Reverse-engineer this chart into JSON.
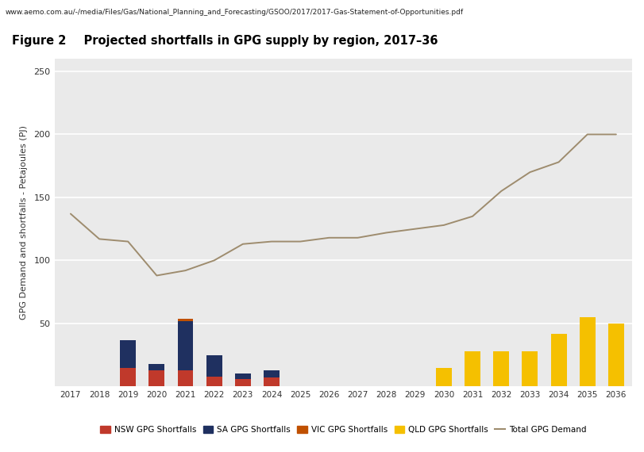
{
  "years": [
    2017,
    2018,
    2019,
    2020,
    2021,
    2022,
    2023,
    2024,
    2025,
    2026,
    2027,
    2028,
    2029,
    2030,
    2031,
    2032,
    2033,
    2034,
    2035,
    2036
  ],
  "nsw_shortfalls": [
    0,
    0,
    15,
    13,
    13,
    8,
    6,
    7,
    0,
    0,
    0,
    0,
    0,
    0,
    0,
    0,
    0,
    0,
    0,
    0
  ],
  "sa_shortfalls": [
    0,
    0,
    22,
    5,
    39,
    17,
    4,
    6,
    0,
    0,
    0,
    0,
    0,
    0,
    0,
    0,
    0,
    0,
    0,
    0
  ],
  "vic_shortfalls": [
    0,
    0,
    0,
    0,
    2,
    0,
    0,
    0,
    0,
    0,
    0,
    0,
    0,
    0,
    0,
    0,
    0,
    0,
    0,
    0
  ],
  "qld_shortfalls": [
    0,
    0,
    0,
    0,
    0,
    0,
    0,
    0,
    0,
    0,
    0,
    0,
    0,
    15,
    28,
    28,
    28,
    42,
    55,
    50
  ],
  "total_gpg_demand": [
    137,
    117,
    115,
    88,
    92,
    100,
    113,
    115,
    115,
    118,
    118,
    122,
    125,
    128,
    135,
    155,
    170,
    178,
    200,
    200
  ],
  "nsw_color": "#c0392b",
  "sa_color": "#1f3060",
  "vic_color": "#c05000",
  "qld_color": "#f5c000",
  "demand_color": "#9e8c6e",
  "plot_bg_color": "#eaeaea",
  "fig_bg_color": "#ffffff",
  "title_prefix": "Figure 2",
  "title_main": "    Projected shortfalls in GPG supply by region, 2017–36",
  "ylabel": "GPG Demand and shortfalls - Petajoules (PJ)",
  "ylim": [
    0,
    260
  ],
  "yticks": [
    50,
    100,
    150,
    200,
    250
  ],
  "header_text": "www.aemo.com.au/-/media/Files/Gas/National_Planning_and_Forecasting/GSOO/2017/2017-Gas-Statement-of-Opportunities.pdf",
  "legend_labels": [
    "NSW GPG Shortfalls",
    "SA GPG Shortfalls",
    "VIC GPG Shortfalls",
    "QLD GPG Shortfalls",
    "Total GPG Demand"
  ],
  "bar_width": 0.55
}
